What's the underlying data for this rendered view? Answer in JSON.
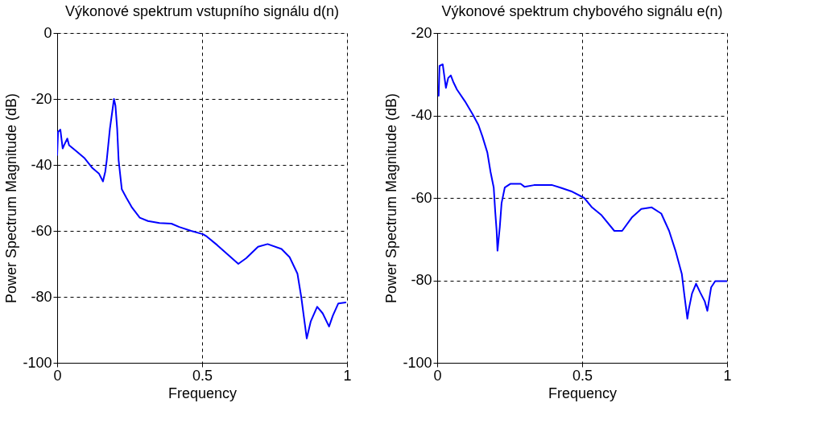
{
  "chart_data": [
    {
      "type": "line",
      "title": "Výkonové spektrum vstupního signálu d(n)",
      "xlabel": "Frequency",
      "ylabel": "Power Spectrum Magnitude (dB)",
      "xlim": [
        0,
        1
      ],
      "xticks": [
        0,
        0.5,
        1
      ],
      "ylim": [
        -100,
        0
      ],
      "yticks": [
        -100,
        -80,
        -60,
        -40,
        -20,
        0
      ],
      "grid": true,
      "line_style": "solid",
      "series": [
        {
          "color": "#0000ff",
          "x": [
            0,
            0.003,
            0.011,
            0.019,
            0.024,
            0.035,
            0.041,
            0.068,
            0.095,
            0.122,
            0.144,
            0.158,
            0.166,
            0.171,
            0.182,
            0.196,
            0.201,
            0.207,
            0.212,
            0.223,
            0.239,
            0.258,
            0.285,
            0.313,
            0.353,
            0.394,
            0.421,
            0.462,
            0.503,
            0.516,
            0.552,
            0.625,
            0.652,
            0.693,
            0.726,
            0.774,
            0.802,
            0.829,
            0.842,
            0.851,
            0.861,
            0.875,
            0.897,
            0.916,
            0.938,
            0.951,
            0.97,
            0.995
          ],
          "values": [
            -37,
            -30,
            -29.3,
            -35,
            -34,
            -32,
            -34,
            -36,
            -38,
            -41,
            -42.6,
            -45,
            -42,
            -38.6,
            -29,
            -20,
            -22,
            -29,
            -38.6,
            -47.4,
            -50,
            -52.9,
            -56,
            -57,
            -57.6,
            -57.8,
            -58.8,
            -60,
            -61,
            -61.7,
            -64.3,
            -70,
            -68.3,
            -64.8,
            -64,
            -65.5,
            -68,
            -73,
            -80,
            -86,
            -92.6,
            -87.4,
            -83,
            -85,
            -89,
            -85.7,
            -82,
            -81.7
          ]
        }
      ]
    },
    {
      "type": "line",
      "title": "Výkonové spektrum chybového signálu e(n)",
      "xlabel": "Frequency",
      "ylabel": "Power Spectrum Magnitude (dB)",
      "xlim": [
        0,
        1
      ],
      "xticks": [
        0,
        0.5,
        1
      ],
      "ylim": [
        -100,
        -20
      ],
      "yticks": [
        -100,
        -80,
        -60,
        -40,
        -20
      ],
      "grid": true,
      "line_style": "solid",
      "series": [
        {
          "color": "#0000ff",
          "x": [
            0.005,
            0.008,
            0.019,
            0.03,
            0.038,
            0.047,
            0.055,
            0.068,
            0.096,
            0.123,
            0.142,
            0.156,
            0.173,
            0.184,
            0.195,
            0.2,
            0.205,
            0.208,
            0.216,
            0.222,
            0.233,
            0.252,
            0.288,
            0.301,
            0.334,
            0.397,
            0.425,
            0.466,
            0.507,
            0.534,
            0.567,
            0.611,
            0.638,
            0.671,
            0.704,
            0.74,
            0.773,
            0.8,
            0.822,
            0.844,
            0.852,
            0.863,
            0.868,
            0.879,
            0.893,
            0.907,
            0.923,
            0.932,
            0.945,
            0.959,
            0.978,
            1
          ],
          "values": [
            -35.2,
            -28,
            -27.6,
            -33.3,
            -30.9,
            -30.3,
            -31.8,
            -33.7,
            -36.6,
            -39.8,
            -42.3,
            -45.1,
            -49,
            -53.7,
            -57.5,
            -63.2,
            -68,
            -72.8,
            -67,
            -61.3,
            -57.5,
            -56.6,
            -56.6,
            -57.3,
            -56.9,
            -56.9,
            -57.5,
            -58.5,
            -60,
            -62.3,
            -64.2,
            -68,
            -68,
            -64.8,
            -62.7,
            -62.3,
            -63.8,
            -68,
            -72.8,
            -78.5,
            -83.2,
            -89.3,
            -87,
            -83.2,
            -80.8,
            -82.9,
            -85.1,
            -87.4,
            -81.7,
            -80.2,
            -80.2,
            -80.2
          ]
        }
      ]
    }
  ]
}
